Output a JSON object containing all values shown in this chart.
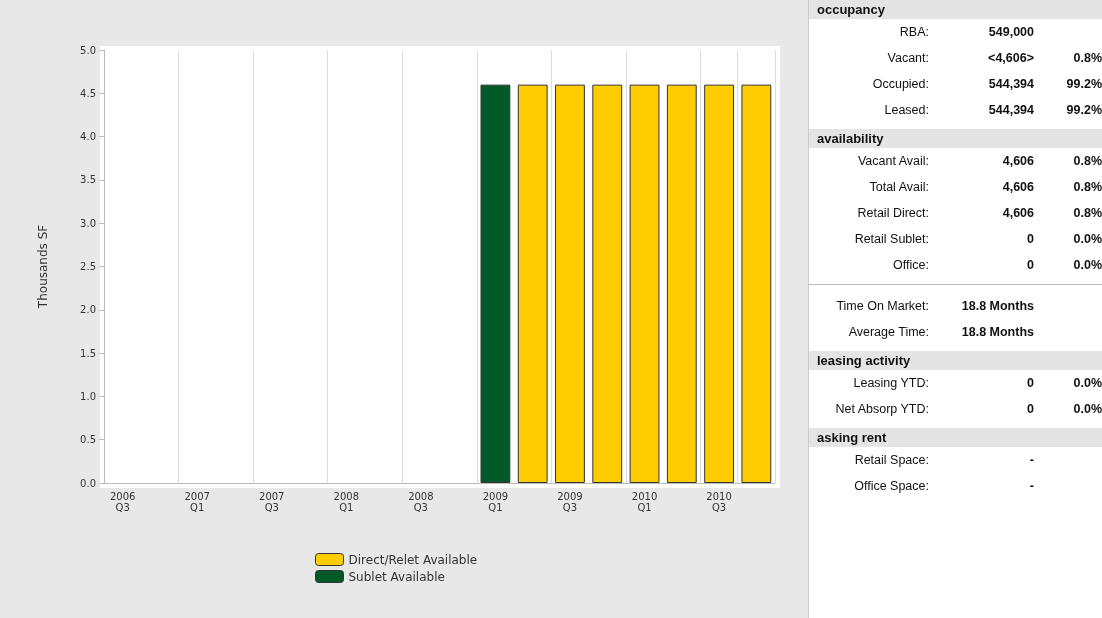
{
  "chart_data": [
    {
      "type": "bar",
      "stacked": true,
      "ylabel": "Thousands SF",
      "categories": [
        "2006\nQ3",
        null,
        "2007\nQ1",
        null,
        "2007\nQ3",
        null,
        "2008\nQ1",
        null,
        "2008\nQ3",
        null,
        "2009\nQ1",
        null,
        "2009\nQ3",
        null,
        "2010\nQ1",
        null,
        "2010\nQ3",
        null
      ],
      "series": [
        {
          "name": "Sublet Available",
          "color": "#005a28",
          "values": [
            null,
            null,
            null,
            null,
            null,
            null,
            null,
            null,
            null,
            null,
            4.6,
            null,
            null,
            null,
            null,
            null,
            null,
            null
          ]
        },
        {
          "name": "Direct/Relet Available",
          "color": "#ffcc00",
          "values": [
            null,
            null,
            null,
            null,
            null,
            null,
            null,
            null,
            null,
            null,
            null,
            4.6,
            4.6,
            4.6,
            4.6,
            4.6,
            4.6,
            4.6
          ]
        }
      ],
      "ylim": [
        0,
        5
      ],
      "yticks": [
        {
          "value": 0,
          "label": "0.0"
        },
        {
          "value": 0.5,
          "label": "0.5"
        },
        {
          "value": 1,
          "label": "1.0"
        },
        {
          "value": 1.5,
          "label": "1.5"
        },
        {
          "value": 2,
          "label": "2.0"
        },
        {
          "value": 2.5,
          "label": "2.5"
        },
        {
          "value": 3,
          "label": "3.0"
        },
        {
          "value": 3.5,
          "label": "3.5"
        },
        {
          "value": 4,
          "label": "4.0"
        },
        {
          "value": 4.5,
          "label": "4.5"
        },
        {
          "value": 5,
          "label": "5.0"
        }
      ],
      "grid": "x",
      "legend": "bottom"
    },
    {
      "type": "other",
      "title": "occupancy",
      "annotations": [
        "RBA:\t549,000",
        "Vacant:\t<4,606>\t0.8%",
        "Occupied:\t544,394\t99.2%",
        "Leased:\t544,394\t99.2%"
      ]
    },
    {
      "type": "other",
      "title": "availability",
      "annotations": [
        "Vacant Avail:\t4,606\t0.8%",
        "Total Avail:\t4,606\t0.8%",
        "Retail Direct:\t4,606\t0.8%",
        "Retail Sublet:\t0\t0.0%",
        "Office:\t0\t0.0%"
      ]
    },
    {
      "type": "other",
      "annotations": [
        "Time On Market:\t18.8 Months",
        "Average Time:\t18.8 Months"
      ]
    },
    {
      "type": "other",
      "title": "leasing activity",
      "annotations": [
        "Leasing YTD:\t0\t0.0%",
        "Net Absorp YTD:\t0\t0.0%"
      ]
    },
    {
      "type": "other",
      "title": "asking rent",
      "annotations": [
        "Retail Space:\t-",
        "Office Space:\t-"
      ]
    }
  ]
}
